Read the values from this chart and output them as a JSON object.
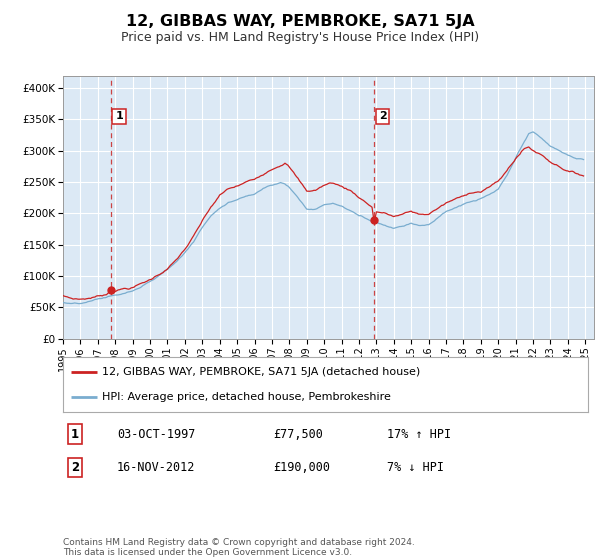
{
  "title": "12, GIBBAS WAY, PEMBROKE, SA71 5JA",
  "subtitle": "Price paid vs. HM Land Registry's House Price Index (HPI)",
  "ylim": [
    0,
    420000
  ],
  "yticks": [
    0,
    50000,
    100000,
    150000,
    200000,
    250000,
    300000,
    350000,
    400000
  ],
  "ytick_labels": [
    "£0",
    "£50K",
    "£100K",
    "£150K",
    "£200K",
    "£250K",
    "£300K",
    "£350K",
    "£400K"
  ],
  "xlim_start": 1995.0,
  "xlim_end": 2025.5,
  "xtick_years": [
    1995,
    1996,
    1997,
    1998,
    1999,
    2000,
    2001,
    2002,
    2003,
    2004,
    2005,
    2006,
    2007,
    2008,
    2009,
    2010,
    2011,
    2012,
    2013,
    2014,
    2015,
    2016,
    2017,
    2018,
    2019,
    2020,
    2021,
    2022,
    2023,
    2024,
    2025
  ],
  "sale1_x": 1997.75,
  "sale1_y": 77500,
  "sale2_x": 2012.88,
  "sale2_y": 190000,
  "red_line_color": "#cc2222",
  "blue_line_color": "#7aadcf",
  "dot_color": "#cc2222",
  "vline_color": "#cc4444",
  "background_color": "#ffffff",
  "plot_bg_color": "#dce9f5",
  "grid_color": "#ffffff",
  "legend_line1": "12, GIBBAS WAY, PEMBROKE, SA71 5JA (detached house)",
  "legend_line2": "HPI: Average price, detached house, Pembrokeshire",
  "table_row1_date": "03-OCT-1997",
  "table_row1_price": "£77,500",
  "table_row1_hpi": "17% ↑ HPI",
  "table_row2_date": "16-NOV-2012",
  "table_row2_price": "£190,000",
  "table_row2_hpi": "7% ↓ HPI",
  "footer": "Contains HM Land Registry data © Crown copyright and database right 2024.\nThis data is licensed under the Open Government Licence v3.0."
}
